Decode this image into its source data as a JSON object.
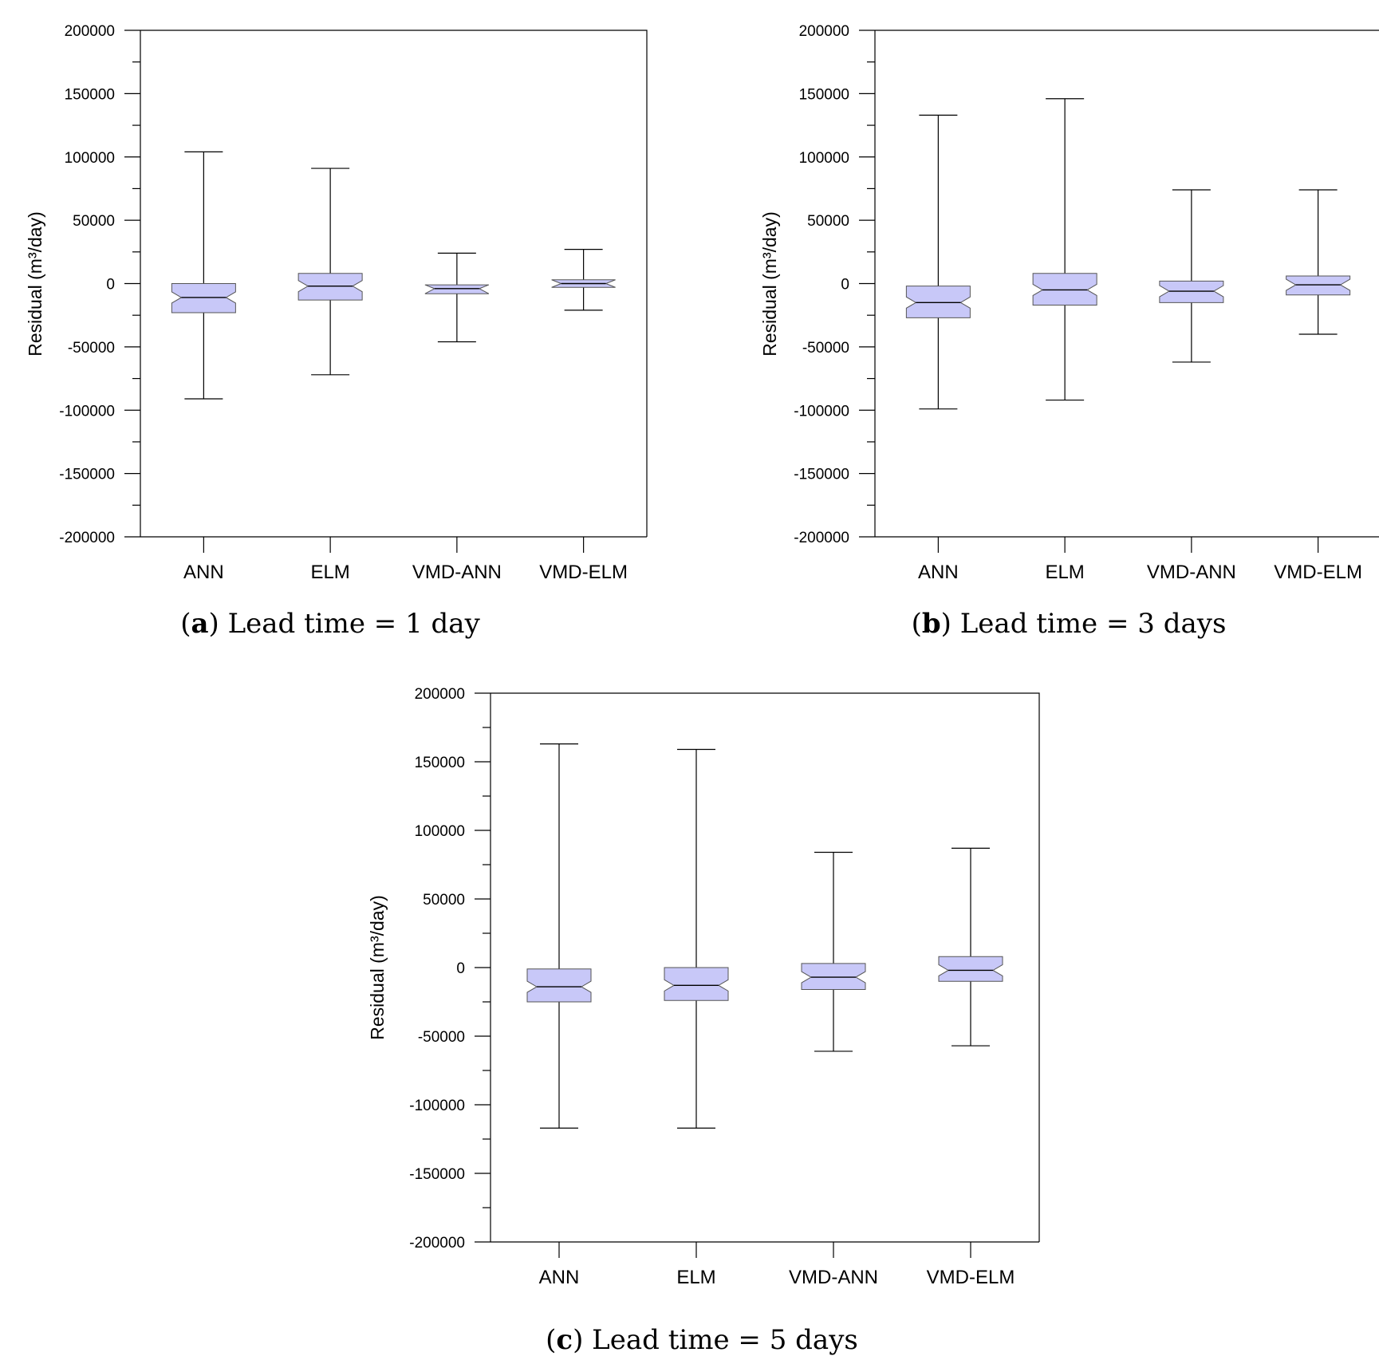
{
  "figure": {
    "panels": [
      {
        "letter": "a",
        "caption_text": "Lead time = 1 day",
        "ylabel": "Residual (m³/day)"
      },
      {
        "letter": "b",
        "caption_text": "Lead time = 3 days",
        "ylabel": "Residual (m³/day)"
      },
      {
        "letter": "c",
        "caption_text": "Lead time = 5 days",
        "ylabel": "Residual (m³/day)"
      }
    ]
  },
  "chart_data": [
    {
      "type": "box",
      "title": "(a) Lead time = 1 day",
      "xlabel": "",
      "ylabel": "Residual (m³/day)",
      "ylim": [
        -200000,
        200000
      ],
      "yticks": [
        -200000,
        -150000,
        -100000,
        -50000,
        0,
        50000,
        100000,
        150000,
        200000
      ],
      "grid": false,
      "categories": [
        "ANN",
        "ELM",
        "VMD-ANN",
        "VMD-ELM"
      ],
      "boxes": [
        {
          "name": "ANN",
          "whisker_low": -91000,
          "q1": -23000,
          "median": -11000,
          "q3": 0,
          "whisker_high": 104000
        },
        {
          "name": "ELM",
          "whisker_low": -72000,
          "q1": -13000,
          "median": -2000,
          "q3": 8000,
          "whisker_high": 91000
        },
        {
          "name": "VMD-ANN",
          "whisker_low": -46000,
          "q1": -8000,
          "median": -4000,
          "q3": -1000,
          "whisker_high": 24000
        },
        {
          "name": "VMD-ELM",
          "whisker_low": -21000,
          "q1": -3000,
          "median": 0,
          "q3": 3000,
          "whisker_high": 27000
        }
      ],
      "box_color": "#c8c8f8"
    },
    {
      "type": "box",
      "title": "(b) Lead time = 3 days",
      "xlabel": "",
      "ylabel": "Residual (m³/day)",
      "ylim": [
        -200000,
        200000
      ],
      "yticks": [
        -200000,
        -150000,
        -100000,
        -50000,
        0,
        50000,
        100000,
        150000,
        200000
      ],
      "grid": false,
      "categories": [
        "ANN",
        "ELM",
        "VMD-ANN",
        "VMD-ELM"
      ],
      "boxes": [
        {
          "name": "ANN",
          "whisker_low": -99000,
          "q1": -27000,
          "median": -15000,
          "q3": -2000,
          "whisker_high": 133000
        },
        {
          "name": "ELM",
          "whisker_low": -92000,
          "q1": -17000,
          "median": -5000,
          "q3": 8000,
          "whisker_high": 146000
        },
        {
          "name": "VMD-ANN",
          "whisker_low": -62000,
          "q1": -15000,
          "median": -6000,
          "q3": 2000,
          "whisker_high": 74000
        },
        {
          "name": "VMD-ELM",
          "whisker_low": -40000,
          "q1": -9000,
          "median": -1000,
          "q3": 6000,
          "whisker_high": 74000
        }
      ],
      "box_color": "#c8c8f8"
    },
    {
      "type": "box",
      "title": "(c) Lead time = 5 days",
      "xlabel": "",
      "ylabel": "Residual (m³/day)",
      "ylim": [
        -200000,
        200000
      ],
      "yticks": [
        -200000,
        -150000,
        -100000,
        -50000,
        0,
        50000,
        100000,
        150000,
        200000
      ],
      "grid": false,
      "categories": [
        "ANN",
        "ELM",
        "VMD-ANN",
        "VMD-ELM"
      ],
      "boxes": [
        {
          "name": "ANN",
          "whisker_low": -117000,
          "q1": -25000,
          "median": -14000,
          "q3": -1000,
          "whisker_high": 163000
        },
        {
          "name": "ELM",
          "whisker_low": -117000,
          "q1": -24000,
          "median": -13000,
          "q3": 0,
          "whisker_high": 159000
        },
        {
          "name": "VMD-ANN",
          "whisker_low": -61000,
          "q1": -16000,
          "median": -7000,
          "q3": 3000,
          "whisker_high": 84000
        },
        {
          "name": "VMD-ELM",
          "whisker_low": -57000,
          "q1": -10000,
          "median": -2000,
          "q3": 8000,
          "whisker_high": 87000
        }
      ],
      "box_color": "#c8c8f8"
    }
  ]
}
